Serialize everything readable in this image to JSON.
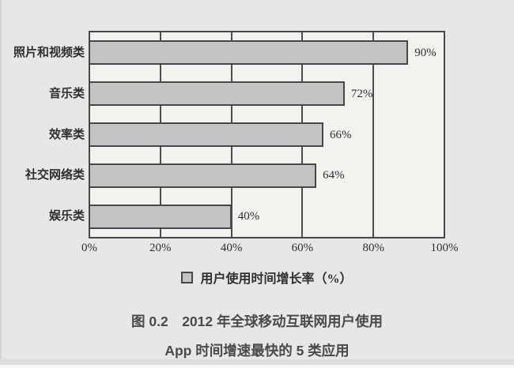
{
  "figure": {
    "caption_line1": "图 0.2　2012 年全球移动互联网用户使用",
    "caption_line2": "App 时间增速最快的 5 类应用"
  },
  "chart_data": {
    "type": "bar",
    "orientation": "horizontal",
    "title": "图 0.2 2012 年全球移动互联网用户使用 App 时间增速最快的 5 类应用",
    "xlabel": "",
    "ylabel": "",
    "categories": [
      "照片和视频类",
      "音乐类",
      "效率类",
      "社交网络类",
      "娱乐类"
    ],
    "values": [
      90,
      72,
      66,
      64,
      40
    ],
    "value_labels": [
      "90%",
      "72%",
      "66%",
      "64%",
      "40%"
    ],
    "x_ticks": [
      "0%",
      "20%",
      "40%",
      "60%",
      "80%",
      "100%"
    ],
    "x_tick_values": [
      0,
      20,
      40,
      60,
      80,
      100
    ],
    "xlim": [
      0,
      100
    ],
    "grid": true,
    "gridlines_at": [
      20,
      40,
      60,
      80
    ],
    "legend_label": "用户使用时间增长率（%）",
    "legend_position": "bottom",
    "colors": {
      "bar_fill": "#c6c4c2",
      "bar_border": "#47464a",
      "plot_background": "#f3f2ef",
      "page_background": "#e8e7e5",
      "line": "#47464a",
      "text": "#2f2e33"
    }
  }
}
